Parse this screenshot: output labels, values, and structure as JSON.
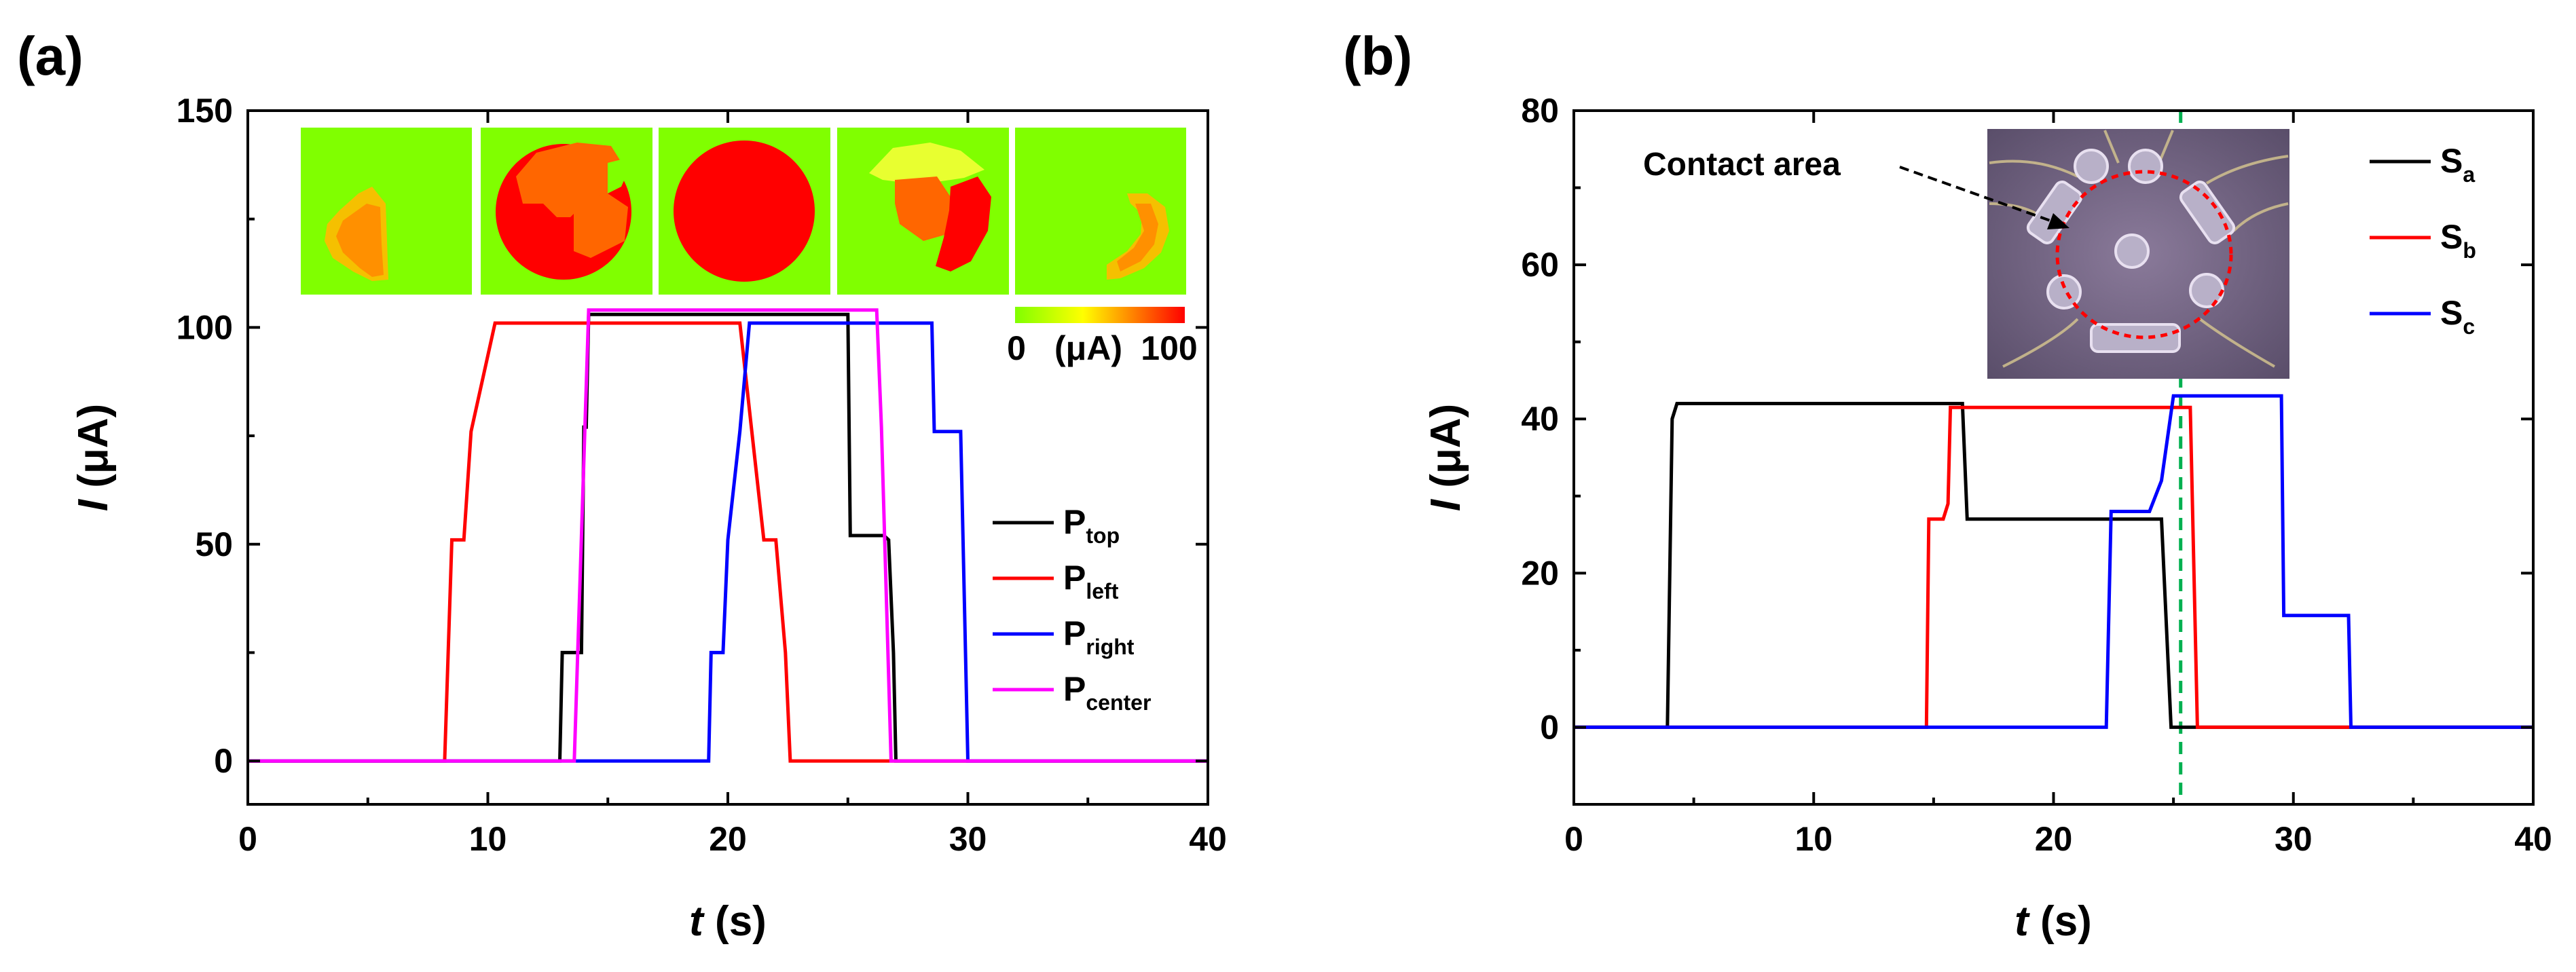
{
  "chart_data": [
    {
      "panel_label": "(a)",
      "type": "line",
      "xlabel_italic": "t",
      "xlabel_unit": " (s)",
      "ylabel_italic": "I",
      "ylabel_unit": " (μA)",
      "xlim": [
        0,
        40
      ],
      "ylim": [
        -10,
        150
      ],
      "xticks": [
        0,
        10,
        20,
        30,
        40
      ],
      "yticks": [
        0,
        50,
        100,
        150
      ],
      "colorbar": {
        "min_label": "0",
        "unit_label": "(μA)",
        "max_label": "100"
      },
      "inset_maps": [
        "top-pressed",
        "left-pressed",
        "center-pressed",
        "right-pressed",
        "right-lower"
      ],
      "series": [
        {
          "name": "P",
          "sub": "top",
          "color": "#000000",
          "x": [
            0,
            13.0,
            13.1,
            13.5,
            13.9,
            14.0,
            14.1,
            14.2,
            14.5,
            25.0,
            25.1,
            26.5,
            26.7,
            26.9,
            27.0,
            40
          ],
          "y": [
            0,
            0,
            25,
            25,
            25,
            77,
            77,
            103,
            103,
            103,
            52,
            52,
            51,
            25,
            0,
            0
          ]
        },
        {
          "name": "P",
          "sub": "left",
          "color": "#ff0000",
          "x": [
            0,
            8.2,
            8.5,
            9.0,
            9.3,
            10.3,
            20.5,
            21.0,
            21.5,
            22.0,
            22.4,
            22.6,
            40
          ],
          "y": [
            0,
            0,
            51,
            51,
            76,
            101,
            101,
            76,
            51,
            51,
            25,
            0,
            0
          ]
        },
        {
          "name": "P",
          "sub": "right",
          "color": "#0000ff",
          "x": [
            0,
            19.2,
            19.3,
            19.8,
            20.0,
            20.5,
            20.9,
            28.5,
            28.6,
            29.7,
            30.0,
            40
          ],
          "y": [
            0,
            0,
            25,
            25,
            51,
            76,
            101,
            101,
            76,
            76,
            0,
            0
          ]
        },
        {
          "name": "P",
          "sub": "center",
          "color": "#ff00ff",
          "x": [
            0,
            13.6,
            14.2,
            26.2,
            26.4,
            26.8,
            40
          ],
          "y": [
            0,
            0,
            104,
            104,
            77,
            0,
            0
          ]
        }
      ]
    },
    {
      "panel_label": "(b)",
      "type": "line",
      "xlabel_italic": "t",
      "xlabel_unit": " (s)",
      "ylabel_italic": "I",
      "ylabel_unit": " (μA)",
      "xlim": [
        0,
        40
      ],
      "ylim": [
        -10,
        80
      ],
      "xticks": [
        0,
        10,
        20,
        30,
        40
      ],
      "yticks": [
        0,
        20,
        40,
        60,
        80
      ],
      "annotation": "Contact area",
      "vline_x": 25.3,
      "series": [
        {
          "name": "S",
          "sub": "a",
          "color": "#000000",
          "x": [
            0,
            3.9,
            4.1,
            4.3,
            16.2,
            16.4,
            24.5,
            24.9,
            40
          ],
          "y": [
            0,
            0,
            40,
            42,
            42,
            27,
            27,
            0,
            0
          ]
        },
        {
          "name": "S",
          "sub": "b",
          "color": "#ff0000",
          "x": [
            0,
            14.7,
            14.8,
            15.4,
            15.6,
            15.7,
            25.7,
            26.0,
            40
          ],
          "y": [
            0,
            0,
            27,
            27,
            29,
            41.5,
            41.5,
            0,
            0
          ]
        },
        {
          "name": "S",
          "sub": "c",
          "color": "#0000ff",
          "x": [
            0,
            22.2,
            22.4,
            24.0,
            24.5,
            25.0,
            29.5,
            29.6,
            32.3,
            32.4,
            40
          ],
          "y": [
            0,
            0,
            28,
            28,
            32,
            43,
            43,
            14.5,
            14.5,
            0,
            0
          ]
        }
      ]
    }
  ]
}
